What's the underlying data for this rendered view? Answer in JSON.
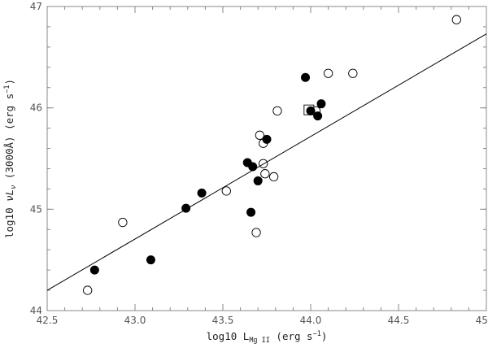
{
  "chart_data": {
    "type": "scatter",
    "title": "",
    "xlabel": {
      "prefix": "log10 L",
      "sub": "Mg II",
      "unit": " (erg s",
      "sup": "−1",
      "close": ")"
    },
    "ylabel": {
      "prefix": "log10 ",
      "nu": "ν",
      "L": "L",
      "sub": "ν",
      "mid": " (3000Å) (erg s",
      "sup": "−1",
      "close": ")"
    },
    "xlim": [
      42.5,
      45.0
    ],
    "ylim": [
      44.0,
      47.0
    ],
    "x_ticks": [
      "42.5",
      "43.0",
      "43.5",
      "44.0",
      "44.5",
      "45.0"
    ],
    "y_ticks": [
      "44",
      "45",
      "46",
      "47"
    ],
    "grid": false,
    "series": [
      {
        "marker": "filled-circle",
        "points": [
          [
            42.77,
            44.4
          ],
          [
            43.09,
            44.5
          ],
          [
            43.29,
            45.01
          ],
          [
            43.38,
            45.16
          ],
          [
            43.64,
            45.46
          ],
          [
            43.66,
            44.97
          ],
          [
            43.67,
            45.42
          ],
          [
            43.7,
            45.28
          ],
          [
            43.75,
            45.69
          ],
          [
            43.97,
            46.3
          ],
          [
            44.0,
            45.97
          ],
          [
            44.04,
            45.92
          ],
          [
            44.06,
            46.04
          ]
        ]
      },
      {
        "marker": "open-circle",
        "points": [
          [
            42.73,
            44.2
          ],
          [
            42.93,
            44.87
          ],
          [
            43.52,
            45.18
          ],
          [
            43.69,
            44.77
          ],
          [
            43.71,
            45.73
          ],
          [
            43.73,
            45.65
          ],
          [
            43.73,
            45.45
          ],
          [
            43.74,
            45.35
          ],
          [
            43.79,
            45.32
          ],
          [
            43.81,
            45.97
          ],
          [
            44.03,
            45.97
          ],
          [
            44.1,
            46.34
          ],
          [
            44.24,
            46.34
          ],
          [
            44.83,
            46.87
          ]
        ]
      },
      {
        "marker": "open-square",
        "points": [
          [
            43.99,
            45.98
          ]
        ]
      }
    ],
    "fit_line": {
      "x": [
        42.5,
        45.0
      ],
      "y": [
        44.2,
        46.73
      ]
    },
    "colors": {
      "axis": "#888888",
      "ink": "#000000"
    }
  }
}
